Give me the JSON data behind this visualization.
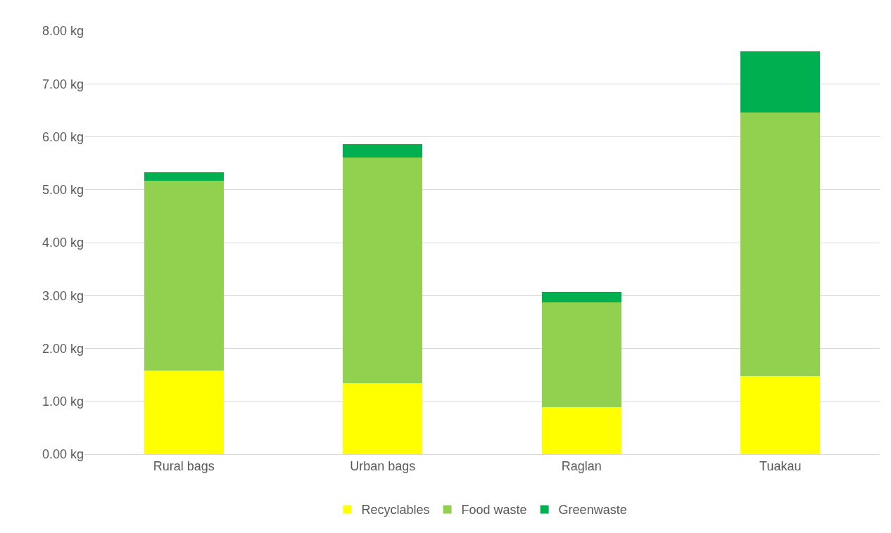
{
  "chart_data": {
    "type": "bar",
    "stacked": true,
    "categories": [
      "Rural bags",
      "Urban bags",
      "Raglan",
      "Tuakau"
    ],
    "series": [
      {
        "name": "Recyclables",
        "color": "#ffff00",
        "values": [
          1.58,
          1.34,
          0.89,
          1.48
        ]
      },
      {
        "name": "Food waste",
        "color": "#92d050",
        "values": [
          3.59,
          4.27,
          1.98,
          4.98
        ]
      },
      {
        "name": "Greenwaste",
        "color": "#00b050",
        "values": [
          0.16,
          0.25,
          0.2,
          1.15
        ]
      }
    ],
    "ylim": [
      0,
      8
    ],
    "yticks": [
      {
        "value": 0,
        "label": "0.00 kg"
      },
      {
        "value": 1,
        "label": "1.00 kg"
      },
      {
        "value": 2,
        "label": "2.00 kg"
      },
      {
        "value": 3,
        "label": "3.00 kg"
      },
      {
        "value": 4,
        "label": "4.00 kg"
      },
      {
        "value": 5,
        "label": "5.00 kg"
      },
      {
        "value": 6,
        "label": "6.00 kg"
      },
      {
        "value": 7,
        "label": "7.00 kg"
      },
      {
        "value": 8,
        "label": "8.00 kg"
      }
    ],
    "grid": "y",
    "legend": "bottom"
  }
}
